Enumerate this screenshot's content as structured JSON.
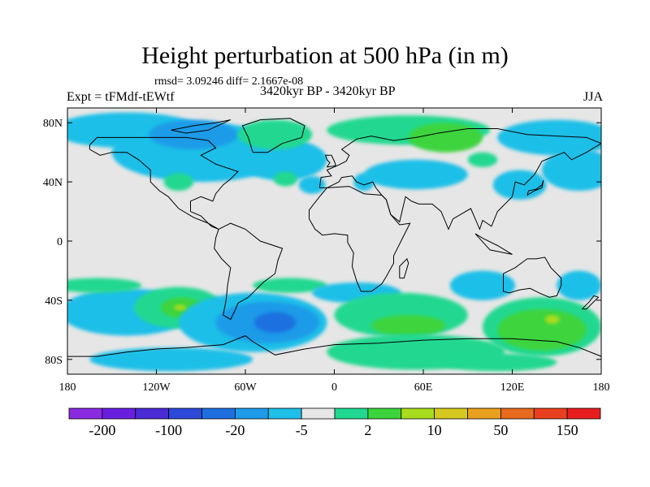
{
  "title": "Height perturbation at 500 hPa (in m)",
  "stats": "rmsd= 3.09246 diff= 2.1667e-08",
  "experiment": "Expt = tFMdf-tEWtf",
  "period": "3420kyr BP - 3420kyr BP",
  "season": "JJA",
  "axes": {
    "lat_ticks": [
      {
        "value": 80,
        "label": "80N"
      },
      {
        "value": 40,
        "label": "40N"
      },
      {
        "value": 0,
        "label": "0"
      },
      {
        "value": -40,
        "label": "40S"
      },
      {
        "value": -80,
        "label": "80S"
      }
    ],
    "lon_ticks": [
      {
        "value": -180,
        "label": "180"
      },
      {
        "value": -120,
        "label": "120W"
      },
      {
        "value": -60,
        "label": "60W"
      },
      {
        "value": 0,
        "label": "0"
      },
      {
        "value": 60,
        "label": "60E"
      },
      {
        "value": 120,
        "label": "120E"
      },
      {
        "value": 180,
        "label": "180"
      }
    ],
    "lon_range": [
      -180,
      180
    ],
    "lat_range": [
      -90,
      90
    ]
  },
  "colorbar": {
    "colors": [
      "#8a2be2",
      "#6a1ee0",
      "#4b2bd6",
      "#2e49d9",
      "#1f6fe0",
      "#1e9be8",
      "#1ebfe8",
      "#e6e6e6",
      "#20d890",
      "#3cd43c",
      "#a8dc1e",
      "#d6c81e",
      "#e8a01e",
      "#e86a1e",
      "#e8401e",
      "#e81e1e"
    ],
    "labels": [
      {
        "boundary": 1,
        "text": "-200"
      },
      {
        "boundary": 3,
        "text": "-100"
      },
      {
        "boundary": 5,
        "text": "-20"
      },
      {
        "boundary": 7,
        "text": "-5"
      },
      {
        "boundary": 9,
        "text": "2"
      },
      {
        "boundary": 11,
        "text": "10"
      },
      {
        "boundary": 13,
        "text": "50"
      },
      {
        "boundary": 15,
        "text": "150"
      }
    ]
  },
  "field_regions": [
    {
      "level": "cyan",
      "color": "#1ebfe8",
      "lon": -140,
      "lat": 75,
      "rlon": 50,
      "rlat": 12
    },
    {
      "level": "cyan",
      "color": "#1ebfe8",
      "lon": -90,
      "lat": 60,
      "rlon": 60,
      "rlat": 20
    },
    {
      "level": "blue",
      "color": "#1e9be8",
      "lon": -95,
      "lat": 72,
      "rlon": 30,
      "rlat": 10
    },
    {
      "level": "cyan",
      "color": "#1ebfe8",
      "lon": -35,
      "lat": 55,
      "rlon": 30,
      "rlat": 14
    },
    {
      "level": "green",
      "color": "#20d890",
      "lon": -40,
      "lat": 72,
      "rlon": 25,
      "rlat": 10
    },
    {
      "level": "green",
      "color": "#20d890",
      "lon": -105,
      "lat": 40,
      "rlon": 10,
      "rlat": 6
    },
    {
      "level": "green",
      "color": "#20d890",
      "lon": -33,
      "lat": 42,
      "rlon": 8,
      "rlat": 5
    },
    {
      "level": "cyan",
      "color": "#1ebfe8",
      "lon": -15,
      "lat": 38,
      "rlon": 9,
      "rlat": 6
    },
    {
      "level": "cyan",
      "color": "#1ebfe8",
      "lon": 20,
      "lat": 40,
      "rlon": 7,
      "rlat": 6
    },
    {
      "level": "cyan",
      "color": "#1ebfe8",
      "lon": 55,
      "lat": 45,
      "rlon": 35,
      "rlat": 10
    },
    {
      "level": "green",
      "color": "#20d890",
      "lon": 50,
      "lat": 75,
      "rlon": 55,
      "rlat": 10
    },
    {
      "level": "darkgreen",
      "color": "#3cd43c",
      "lon": 75,
      "lat": 70,
      "rlon": 25,
      "rlat": 10
    },
    {
      "level": "cyan",
      "color": "#1ebfe8",
      "lon": 150,
      "lat": 70,
      "rlon": 40,
      "rlat": 12
    },
    {
      "level": "cyan",
      "color": "#1ebfe8",
      "lon": 165,
      "lat": 48,
      "rlon": 25,
      "rlat": 14
    },
    {
      "level": "cyan",
      "color": "#1ebfe8",
      "lon": 125,
      "lat": 38,
      "rlon": 18,
      "rlat": 10
    },
    {
      "level": "green",
      "color": "#20d890",
      "lon": 100,
      "lat": 55,
      "rlon": 10,
      "rlat": 5
    },
    {
      "level": "cyan",
      "color": "#1ebfe8",
      "lon": -140,
      "lat": -48,
      "rlon": 45,
      "rlat": 16
    },
    {
      "level": "green",
      "color": "#20d890",
      "lon": -105,
      "lat": -45,
      "rlon": 30,
      "rlat": 14
    },
    {
      "level": "darkgreen",
      "color": "#3cd43c",
      "lon": -103,
      "lat": -45,
      "rlon": 14,
      "rlat": 7
    },
    {
      "level": "green",
      "color": "#20d890",
      "lon": -160,
      "lat": -30,
      "rlon": 30,
      "rlat": 5
    },
    {
      "level": "cyan",
      "color": "#1ebfe8",
      "lon": -55,
      "lat": -55,
      "rlon": 50,
      "rlat": 20
    },
    {
      "level": "blue",
      "color": "#1e9be8",
      "lon": -45,
      "lat": -55,
      "rlon": 35,
      "rlat": 14
    },
    {
      "level": "darkblue",
      "color": "#1f6fe0",
      "lon": -40,
      "lat": -55,
      "rlon": 14,
      "rlat": 7
    },
    {
      "level": "cyan",
      "color": "#1ebfe8",
      "lon": -110,
      "lat": -80,
      "rlon": 55,
      "rlat": 8
    },
    {
      "level": "green",
      "color": "#20d890",
      "lon": -30,
      "lat": -30,
      "rlon": 25,
      "rlat": 5
    },
    {
      "level": "cyan",
      "color": "#1ebfe8",
      "lon": 15,
      "lat": -35,
      "rlon": 30,
      "rlat": 7
    },
    {
      "level": "green",
      "color": "#20d890",
      "lon": 45,
      "lat": -50,
      "rlon": 45,
      "rlat": 15
    },
    {
      "level": "darkgreen",
      "color": "#3cd43c",
      "lon": 50,
      "lat": -57,
      "rlon": 25,
      "rlat": 7
    },
    {
      "level": "green",
      "color": "#20d890",
      "lon": 55,
      "lat": -75,
      "rlon": 60,
      "rlat": 12
    },
    {
      "level": "cyan",
      "color": "#1ebfe8",
      "lon": 100,
      "lat": -30,
      "rlon": 22,
      "rlat": 10
    },
    {
      "level": "green",
      "color": "#20d890",
      "lon": 140,
      "lat": -58,
      "rlon": 40,
      "rlat": 20
    },
    {
      "level": "darkgreen",
      "color": "#3cd43c",
      "lon": 140,
      "lat": -60,
      "rlon": 30,
      "rlat": 14
    },
    {
      "level": "yellowgreen",
      "color": "#a8dc1e",
      "lon": 147,
      "lat": -53,
      "rlon": 5,
      "rlat": 3
    },
    {
      "level": "yellowgreen",
      "color": "#a8dc1e",
      "lon": -104,
      "lat": -45,
      "rlon": 4,
      "rlat": 2
    },
    {
      "level": "green",
      "color": "#20d890",
      "lon": 110,
      "lat": -82,
      "rlon": 40,
      "rlat": 6
    },
    {
      "level": "cyan",
      "color": "#1ebfe8",
      "lon": 165,
      "lat": -30,
      "rlon": 15,
      "rlat": 10
    }
  ],
  "colors": {
    "background": "#e6e6e6",
    "coast": "#000000"
  }
}
